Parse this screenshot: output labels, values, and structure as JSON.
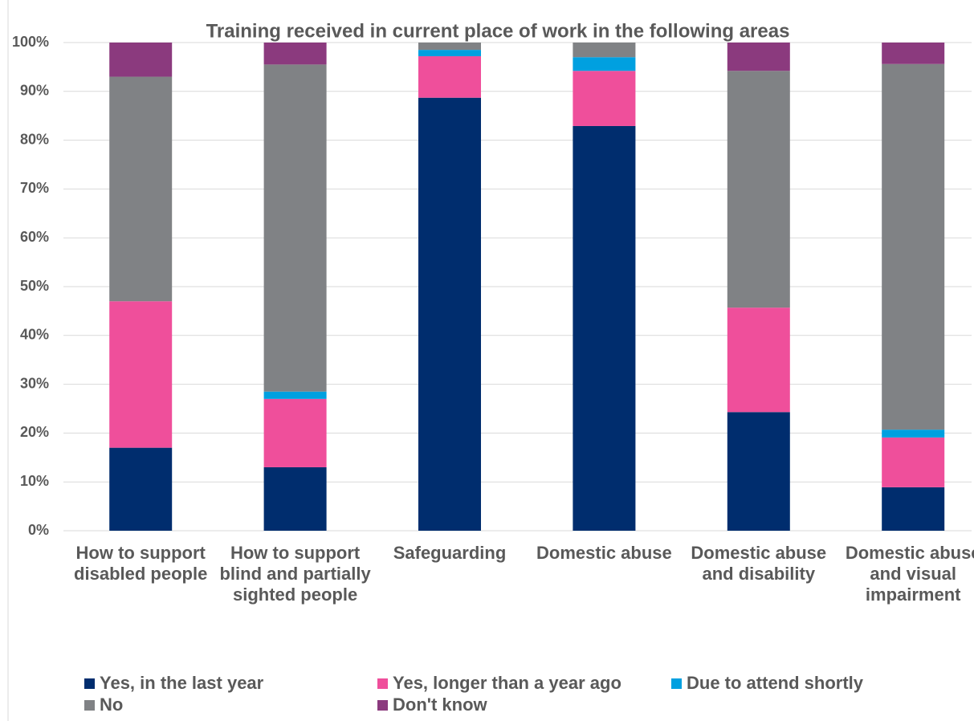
{
  "chart_data": {
    "type": "bar",
    "stacked": true,
    "title": "Training received in current place of work in the following areas",
    "categories": [
      "How to support disabled people",
      "How to support blind and partially sighted people",
      "Safeguarding",
      "Domestic abuse",
      "Domestic abuse and disability",
      "Domestic abuse and visual impairment"
    ],
    "series": [
      {
        "name": "Yes, in the last year",
        "color": "#002d6e",
        "values": [
          17,
          13,
          88.7,
          82.9,
          24.3,
          8.9
        ]
      },
      {
        "name": "Yes, longer than a year ago",
        "color": "#ef4f9b",
        "values": [
          30,
          14,
          8.5,
          11.3,
          21.4,
          10.2
        ]
      },
      {
        "name": "Due to attend shortly",
        "color": "#00a0e0",
        "values": [
          0,
          1.5,
          1.3,
          2.8,
          0,
          1.6
        ]
      },
      {
        "name": "No",
        "color": "#808285",
        "values": [
          46,
          67,
          1.5,
          3,
          48.5,
          74.9
        ]
      },
      {
        "name": "Don't know",
        "color": "#8b3a7e",
        "values": [
          7,
          4.5,
          0,
          0,
          5.8,
          4.4
        ]
      }
    ],
    "ylim": [
      0,
      100
    ],
    "yticks": [
      {
        "value": 0,
        "label": "0%"
      },
      {
        "value": 10,
        "label": "10%"
      },
      {
        "value": 20,
        "label": "20%"
      },
      {
        "value": 30,
        "label": "30%"
      },
      {
        "value": 40,
        "label": "40%"
      },
      {
        "value": 50,
        "label": "50%"
      },
      {
        "value": 60,
        "label": "60%"
      },
      {
        "value": 70,
        "label": "70%"
      },
      {
        "value": 80,
        "label": "80%"
      },
      {
        "value": 90,
        "label": "90%"
      },
      {
        "value": 100,
        "label": "100%"
      }
    ],
    "grid": true,
    "legend": "bottom"
  }
}
